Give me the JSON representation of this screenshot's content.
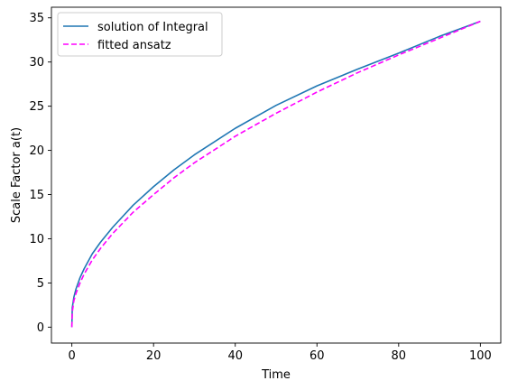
{
  "chart_data": {
    "type": "line",
    "title": "",
    "xlabel": "Time",
    "ylabel": "Scale Factor a(t)",
    "xlim": [
      -5,
      105
    ],
    "ylim": [
      -1.8,
      36.2
    ],
    "xticks": [
      0,
      20,
      40,
      60,
      80,
      100
    ],
    "yticks": [
      0,
      5,
      10,
      15,
      20,
      25,
      30,
      35
    ],
    "grid": false,
    "legend_position": "upper-left",
    "series": [
      {
        "name": "solution of Integral",
        "color": "#1f77b4",
        "style": "solid",
        "x": [
          0,
          0.1,
          0.5,
          1,
          2,
          3,
          5,
          7,
          10,
          15,
          20,
          25,
          30,
          40,
          50,
          60,
          70,
          80,
          90,
          100
        ],
        "y": [
          0,
          2.2,
          3.4,
          4.3,
          5.6,
          6.6,
          8.3,
          9.6,
          11.3,
          13.8,
          15.9,
          17.8,
          19.5,
          22.5,
          25.1,
          27.3,
          29.2,
          31.0,
          32.9,
          34.6
        ]
      },
      {
        "name": "fitted ansatz",
        "color": "#ff00ff",
        "style": "dashed",
        "x": [
          0,
          0.1,
          0.5,
          1,
          2,
          3,
          5,
          7,
          10,
          15,
          20,
          25,
          30,
          40,
          50,
          60,
          70,
          80,
          90,
          100
        ],
        "y": [
          0,
          1.7,
          3.0,
          3.8,
          5.0,
          6.0,
          7.6,
          8.9,
          10.6,
          13.0,
          15.0,
          16.9,
          18.6,
          21.6,
          24.2,
          26.6,
          28.8,
          30.8,
          32.7,
          34.6
        ]
      }
    ]
  }
}
